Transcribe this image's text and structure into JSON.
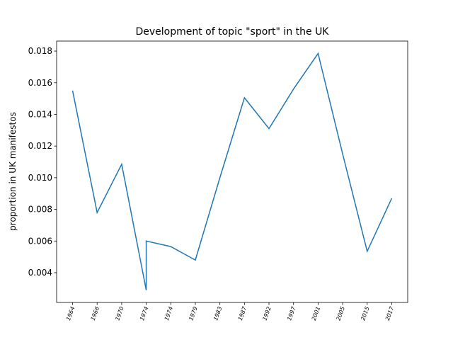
{
  "chart_data": {
    "type": "line",
    "title": "Development of topic \"sport\" in the UK",
    "y_label": "proportion in UK manifestos",
    "x": [
      0,
      1,
      2,
      3,
      3,
      4,
      5,
      6,
      7,
      8,
      9,
      10,
      11,
      12,
      13
    ],
    "series": [
      {
        "name": "sport",
        "color": "#1f77b4",
        "values": [
          0.0155,
          0.0078,
          0.01085,
          0.0029,
          0.006,
          0.00565,
          0.0048,
          0.01,
          0.01505,
          0.0131,
          0.0156,
          0.01785,
          0.0115,
          0.00535,
          0.0087
        ]
      }
    ],
    "xlim": [
      -0.65,
      13.65
    ],
    "xticks": [
      {
        "value": 0,
        "label": "1964"
      },
      {
        "value": 1,
        "label": "1966"
      },
      {
        "value": 2,
        "label": "1970"
      },
      {
        "value": 3,
        "label": "1974"
      },
      {
        "value": 4,
        "label": "1974"
      },
      {
        "value": 5,
        "label": "1979"
      },
      {
        "value": 6,
        "label": "1983"
      },
      {
        "value": 7,
        "label": "1987"
      },
      {
        "value": 8,
        "label": "1992"
      },
      {
        "value": 9,
        "label": "1997"
      },
      {
        "value": 10,
        "label": "2001"
      },
      {
        "value": 11,
        "label": "2005"
      },
      {
        "value": 12,
        "label": "2015"
      },
      {
        "value": 13,
        "label": "2017"
      }
    ],
    "ylim": [
      0.00212,
      0.01863
    ],
    "yticks": [
      0.004,
      0.006,
      0.008,
      {
        "value": 0.01,
        "label": "0.010"
      },
      0.012,
      0.014,
      0.016,
      0.018
    ],
    "grid": false
  }
}
